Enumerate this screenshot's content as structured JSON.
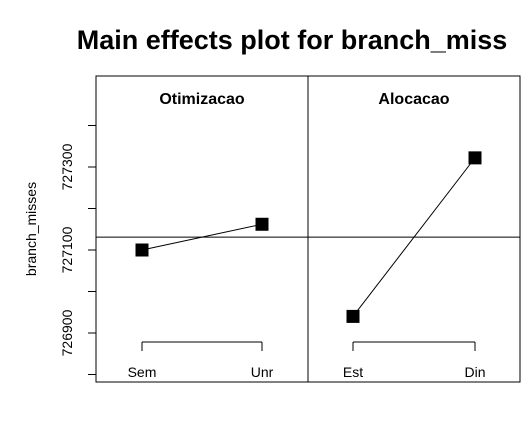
{
  "chart_data": {
    "type": "line",
    "title": "Main effects plot for branch_miss",
    "ylabel": "branch_misses",
    "ylim": [
      726800,
      727500
    ],
    "yticks": [
      726900,
      727100,
      727300
    ],
    "ytick_labels": [
      "726900",
      "727100",
      "727300"
    ],
    "grand_mean": 727131,
    "panels": [
      {
        "name": "Otimizacao",
        "categories": [
          "Sem",
          "Unr"
        ],
        "values": [
          727100,
          727162
        ]
      },
      {
        "name": "Alocacao",
        "categories": [
          "Est",
          "Din"
        ],
        "values": [
          726940,
          727322
        ]
      }
    ],
    "marker_color": "#000000"
  }
}
